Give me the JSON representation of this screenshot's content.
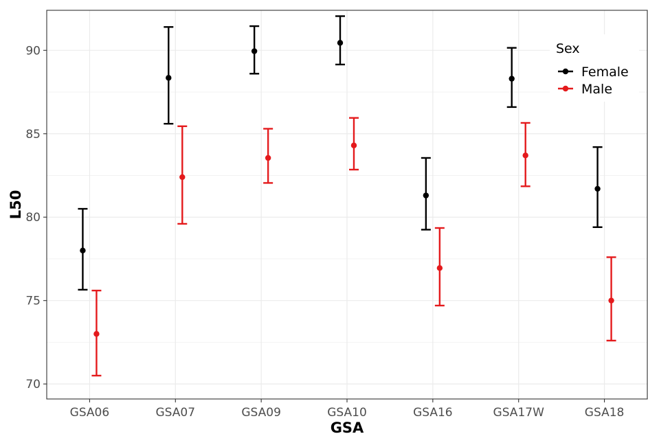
{
  "chart_data": {
    "type": "scatter",
    "xlabel": "GSA",
    "ylabel": "L50",
    "categories": [
      "GSA06",
      "GSA07",
      "GSA09",
      "GSA10",
      "GSA16",
      "GSA17W",
      "GSA18"
    ],
    "ylim": [
      69.1,
      92.4
    ],
    "yticks": [
      70,
      75,
      80,
      85,
      90
    ],
    "grid": true,
    "legend": {
      "title": "Sex",
      "placement": "top-right"
    },
    "series": [
      {
        "name": "Female",
        "color": "#000000",
        "values": [
          78.0,
          88.35,
          89.95,
          90.45,
          81.3,
          88.3,
          81.7
        ],
        "lower": [
          75.65,
          85.6,
          88.6,
          89.15,
          79.25,
          86.6,
          79.4
        ],
        "upper": [
          80.5,
          91.4,
          91.45,
          92.05,
          83.55,
          90.15,
          84.2
        ]
      },
      {
        "name": "Male",
        "color": "#e41a1c",
        "values": [
          73.0,
          82.4,
          83.55,
          84.3,
          76.95,
          83.7,
          75.0
        ],
        "lower": [
          70.5,
          79.6,
          82.05,
          82.85,
          74.7,
          81.85,
          72.6
        ],
        "upper": [
          75.6,
          85.45,
          85.3,
          85.95,
          79.35,
          85.65,
          77.6
        ]
      }
    ]
  }
}
